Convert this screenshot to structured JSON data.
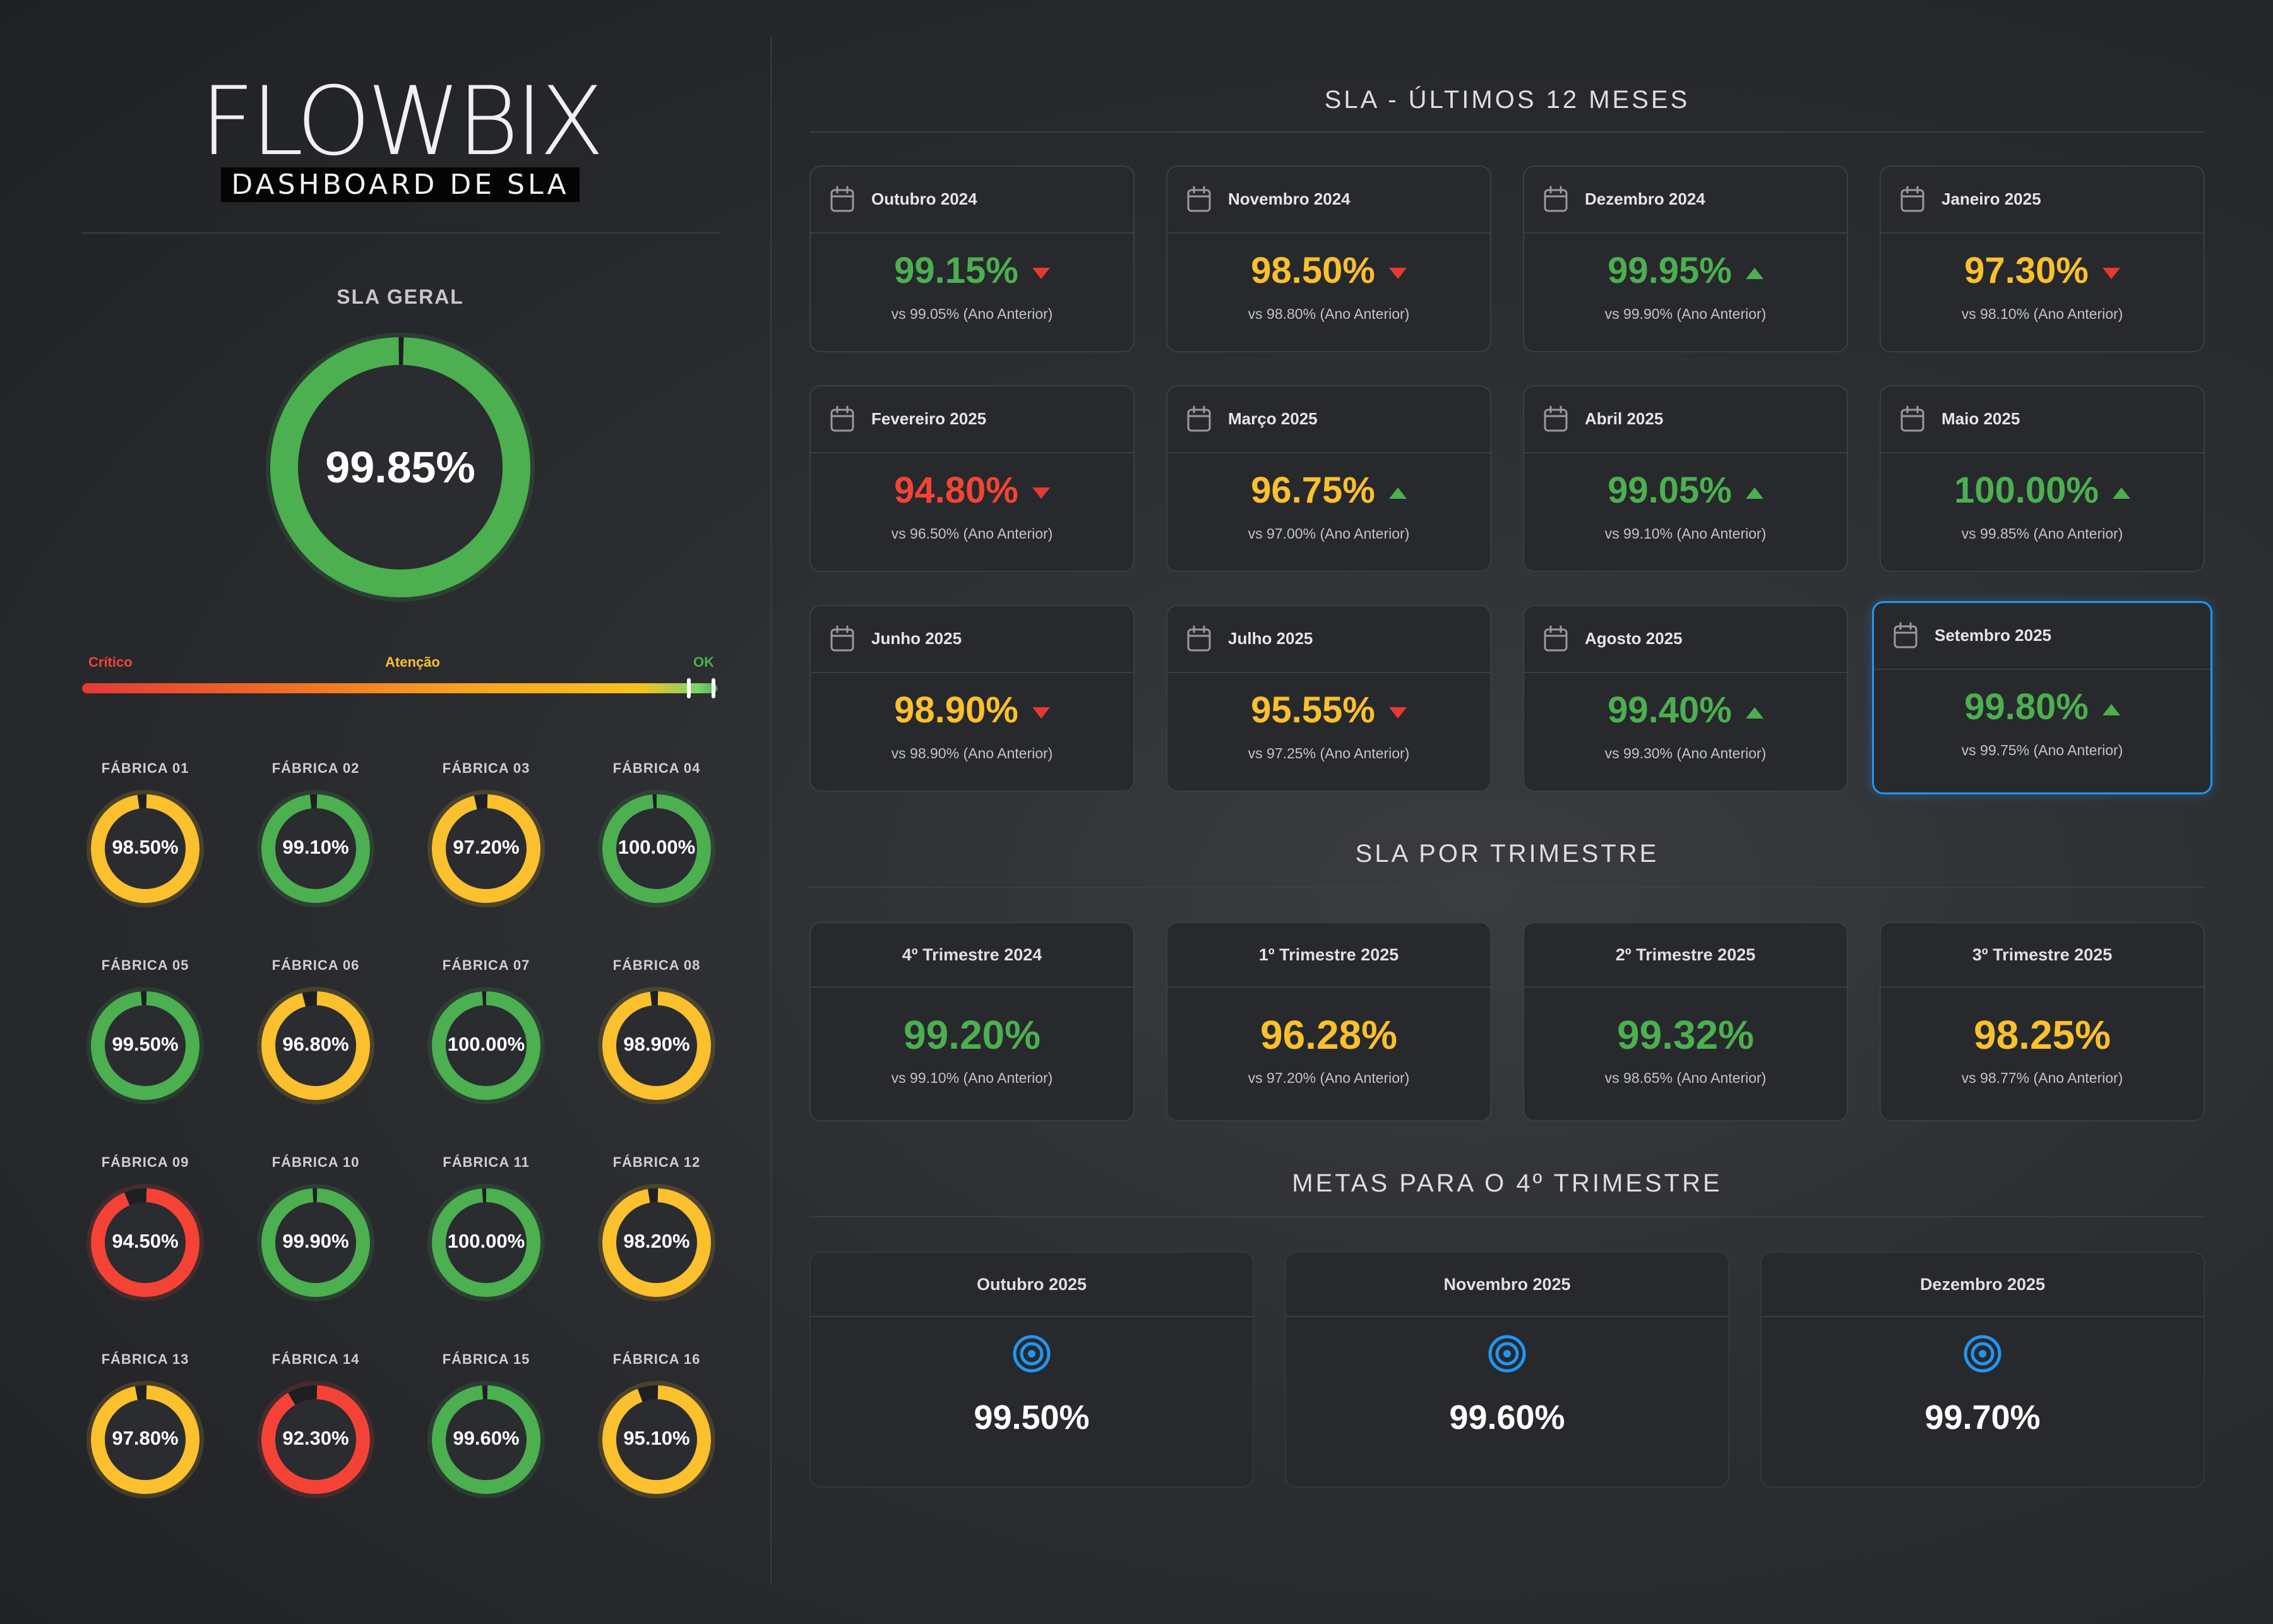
{
  "brand": {
    "logo_text": "FLOWBIX",
    "subtitle": "DASHBOARD DE SLA"
  },
  "colors": {
    "green": "#4caf50",
    "yellow": "#fbc02d",
    "red": "#f44336",
    "highlight": "#2196f3"
  },
  "sla_geral": {
    "title": "SLA GERAL",
    "value": "99.85%",
    "fraction": 0.9985,
    "status": "green"
  },
  "scale": {
    "critico": "Crítico",
    "atencao": "Atenção",
    "ok": "OK"
  },
  "fabricas": [
    {
      "name": "FÁBRICA 01",
      "value": "98.50%",
      "fraction": 0.985,
      "status": "yellow"
    },
    {
      "name": "FÁBRICA 02",
      "value": "99.10%",
      "fraction": 0.991,
      "status": "green"
    },
    {
      "name": "FÁBRICA 03",
      "value": "97.20%",
      "fraction": 0.972,
      "status": "yellow"
    },
    {
      "name": "FÁBRICA 04",
      "value": "100.00%",
      "fraction": 1.0,
      "status": "green"
    },
    {
      "name": "FÁBRICA 05",
      "value": "99.50%",
      "fraction": 0.995,
      "status": "green"
    },
    {
      "name": "FÁBRICA 06",
      "value": "96.80%",
      "fraction": 0.968,
      "status": "yellow"
    },
    {
      "name": "FÁBRICA 07",
      "value": "100.00%",
      "fraction": 1.0,
      "status": "green"
    },
    {
      "name": "FÁBRICA 08",
      "value": "98.90%",
      "fraction": 0.989,
      "status": "yellow"
    },
    {
      "name": "FÁBRICA 09",
      "value": "94.50%",
      "fraction": 0.945,
      "status": "red"
    },
    {
      "name": "FÁBRICA 10",
      "value": "99.90%",
      "fraction": 0.999,
      "status": "green"
    },
    {
      "name": "FÁBRICA 11",
      "value": "100.00%",
      "fraction": 1.0,
      "status": "green"
    },
    {
      "name": "FÁBRICA 12",
      "value": "98.20%",
      "fraction": 0.982,
      "status": "yellow"
    },
    {
      "name": "FÁBRICA 13",
      "value": "97.80%",
      "fraction": 0.978,
      "status": "yellow"
    },
    {
      "name": "FÁBRICA 14",
      "value": "92.30%",
      "fraction": 0.923,
      "status": "red"
    },
    {
      "name": "FÁBRICA 15",
      "value": "99.60%",
      "fraction": 0.996,
      "status": "green"
    },
    {
      "name": "FÁBRICA 16",
      "value": "95.10%",
      "fraction": 0.951,
      "status": "yellow"
    }
  ],
  "monthly": {
    "title": "SLA - ÚLTIMOS 12 MESES",
    "items": [
      {
        "label": "Outubro 2024",
        "value": "99.15%",
        "status": "green",
        "trend": "down",
        "compare": "vs 99.05% (Ano Anterior)"
      },
      {
        "label": "Novembro 2024",
        "value": "98.50%",
        "status": "yellow",
        "trend": "down",
        "compare": "vs 98.80% (Ano Anterior)"
      },
      {
        "label": "Dezembro 2024",
        "value": "99.95%",
        "status": "green",
        "trend": "up",
        "compare": "vs 99.90% (Ano Anterior)"
      },
      {
        "label": "Janeiro 2025",
        "value": "97.30%",
        "status": "yellow",
        "trend": "down",
        "compare": "vs 98.10% (Ano Anterior)"
      },
      {
        "label": "Fevereiro 2025",
        "value": "94.80%",
        "status": "red",
        "trend": "down",
        "compare": "vs 96.50% (Ano Anterior)"
      },
      {
        "label": "Março 2025",
        "value": "96.75%",
        "status": "yellow",
        "trend": "up",
        "compare": "vs 97.00% (Ano Anterior)"
      },
      {
        "label": "Abril 2025",
        "value": "99.05%",
        "status": "green",
        "trend": "up",
        "compare": "vs 99.10% (Ano Anterior)"
      },
      {
        "label": "Maio 2025",
        "value": "100.00%",
        "status": "green",
        "trend": "up",
        "compare": "vs 99.85% (Ano Anterior)"
      },
      {
        "label": "Junho 2025",
        "value": "98.90%",
        "status": "yellow",
        "trend": "down",
        "compare": "vs 98.90% (Ano Anterior)"
      },
      {
        "label": "Julho 2025",
        "value": "95.55%",
        "status": "yellow",
        "trend": "down",
        "compare": "vs 97.25% (Ano Anterior)"
      },
      {
        "label": "Agosto 2025",
        "value": "99.40%",
        "status": "green",
        "trend": "up",
        "compare": "vs 99.30% (Ano Anterior)"
      },
      {
        "label": "Setembro 2025",
        "value": "99.80%",
        "status": "green",
        "trend": "up",
        "compare": "vs 99.75% (Ano Anterior)",
        "highlight": true
      }
    ]
  },
  "quarterly": {
    "title": "SLA POR TRIMESTRE",
    "items": [
      {
        "label": "4º Trimestre 2024",
        "value": "99.20%",
        "status": "green",
        "compare": "vs 99.10% (Ano Anterior)"
      },
      {
        "label": "1º Trimestre 2025",
        "value": "96.28%",
        "status": "yellow",
        "compare": "vs 97.20% (Ano Anterior)"
      },
      {
        "label": "2º Trimestre 2025",
        "value": "99.32%",
        "status": "green",
        "compare": "vs 98.65% (Ano Anterior)"
      },
      {
        "label": "3º Trimestre 2025",
        "value": "98.25%",
        "status": "yellow",
        "compare": "vs 98.77% (Ano Anterior)"
      }
    ]
  },
  "goals": {
    "title": "METAS PARA O 4º TRIMESTRE",
    "items": [
      {
        "label": "Outubro 2025",
        "value": "99.50%",
        "icon": "target-icon"
      },
      {
        "label": "Novembro 2025",
        "value": "99.60%",
        "icon": "target-icon"
      },
      {
        "label": "Dezembro 2025",
        "value": "99.70%",
        "icon": "target-icon"
      }
    ]
  }
}
